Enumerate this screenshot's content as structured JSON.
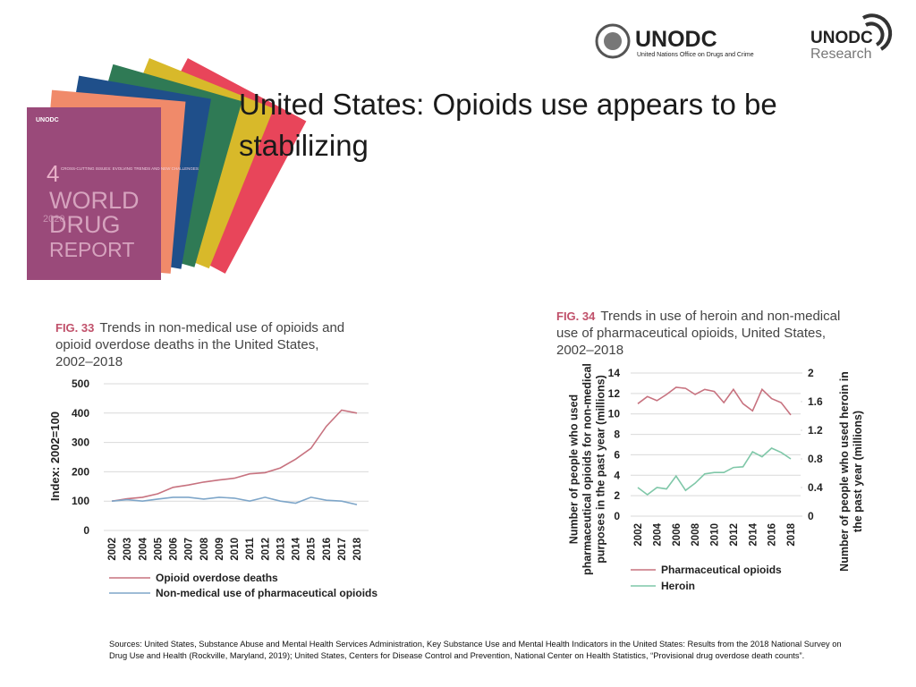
{
  "slide_title": "United States: Opioids use appears to be stabilizing",
  "logos": {
    "unodc": "UNODC",
    "unodc_full": "United Nations Office on Drugs and Crime",
    "research_top": "UNODC",
    "research_bottom": "Research"
  },
  "cover": {
    "number": "4",
    "subtitle": "CROSS-CUTTING ISSUES: EVOLVING TRENDS AND NEW CHALLENGES",
    "line1": "WORLD",
    "line2": "DRUG",
    "line3": "REPORT",
    "year": "2020",
    "brand": "UNODC"
  },
  "sources": "Sources: United States, Substance Abuse and Mental Health Services Administration, Key Substance Use and Mental Health Indicators in the United States: Results from the 2018 National Survey on Drug Use and Health (Rockville, Maryland, 2019); United States, Centers for Disease Control and Prevention, National Center on Health Statistics, “Provisional drug overdose death counts”.",
  "chart_data": [
    {
      "type": "line",
      "figure": "FIG. 33",
      "title": "Trends in non-medical use of opioids and opioid overdose deaths in the United States, 2002–2018",
      "y_label": "Index: 2002=100",
      "categories": [
        "2002",
        "2003",
        "2004",
        "2005",
        "2006",
        "2007",
        "2008",
        "2009",
        "2010",
        "2011",
        "2012",
        "2013",
        "2014",
        "2015",
        "2016",
        "2017",
        "2018"
      ],
      "series": [
        {
          "name": "Opioid overdose deaths",
          "color": "#c7727f",
          "values": [
            100,
            108,
            113,
            125,
            147,
            155,
            165,
            172,
            178,
            193,
            197,
            213,
            243,
            280,
            355,
            410,
            400
          ]
        },
        {
          "name": "Non-medical use of pharmaceutical opioids",
          "color": "#7ea6c9",
          "values": [
            100,
            105,
            100,
            107,
            113,
            113,
            107,
            113,
            110,
            100,
            113,
            100,
            93,
            113,
            103,
            100,
            88
          ]
        }
      ],
      "ylim": [
        0,
        500
      ],
      "yticks": [
        0,
        100,
        200,
        300,
        400,
        500
      ],
      "grid": true
    },
    {
      "type": "line",
      "figure": "FIG. 34",
      "title": "Trends in use of heroin and non-medical use of pharmaceutical opioids, United States, 2002–2018",
      "y_label": "Number of people who used pharmaceutical opioids for non-medical purposes in the past year (millions)",
      "y2_label": "Number of people who used heroin in the past year (millions)",
      "categories": [
        "2002",
        null,
        "2004",
        null,
        "2006",
        null,
        "2008",
        null,
        "2010",
        null,
        "2012",
        null,
        "2014",
        null,
        "2016",
        null,
        "2018"
      ],
      "series": [
        {
          "name": "Pharmaceutical opioids",
          "color": "#c7727f",
          "values": [
            11.0,
            11.7,
            11.3,
            11.9,
            12.6,
            12.5,
            11.9,
            12.4,
            12.2,
            11.1,
            12.4,
            11.0,
            10.3,
            12.4,
            11.5,
            11.1,
            9.9
          ]
        },
        {
          "name": "Heroin",
          "color": "#7fc7a8",
          "axis": "y2",
          "values": [
            0.4,
            0.3,
            0.4,
            0.38,
            0.56,
            0.36,
            0.46,
            0.59,
            0.61,
            0.61,
            0.68,
            0.69,
            0.9,
            0.83,
            0.95,
            0.89,
            0.8
          ]
        }
      ],
      "ylim": [
        0,
        14
      ],
      "yticks": [
        0,
        2,
        4,
        6,
        8,
        10,
        12,
        14
      ],
      "y2lim": [
        0,
        2
      ],
      "y2ticks": [
        0,
        0.4,
        0.8,
        1.2,
        1.6,
        2
      ],
      "grid": true
    }
  ]
}
